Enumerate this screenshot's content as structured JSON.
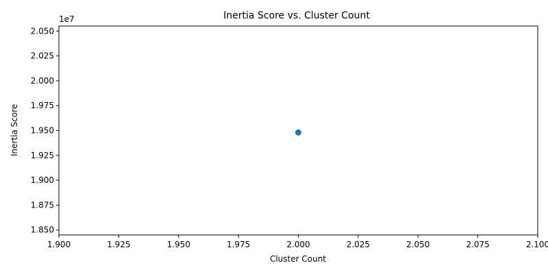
{
  "chart_data": {
    "type": "scatter",
    "title": "Inertia Score vs. Cluster Count",
    "xlabel": "Cluster Count",
    "ylabel": "Inertia Score",
    "y_offset_label": "1e7",
    "xlim": [
      1.9,
      2.1
    ],
    "ylim": [
      18.45,
      20.55
    ],
    "x_ticks": [
      "1.900",
      "1.925",
      "1.950",
      "1.975",
      "2.000",
      "2.025",
      "2.050",
      "2.075",
      "2.100"
    ],
    "y_ticks": [
      "1.850",
      "1.875",
      "1.900",
      "1.925",
      "1.950",
      "1.975",
      "2.000",
      "2.025",
      "2.050"
    ],
    "points": [
      {
        "x": 2,
        "y": 19.48
      }
    ],
    "point_color": "#1f77b4",
    "grid": false,
    "legend": "none"
  }
}
